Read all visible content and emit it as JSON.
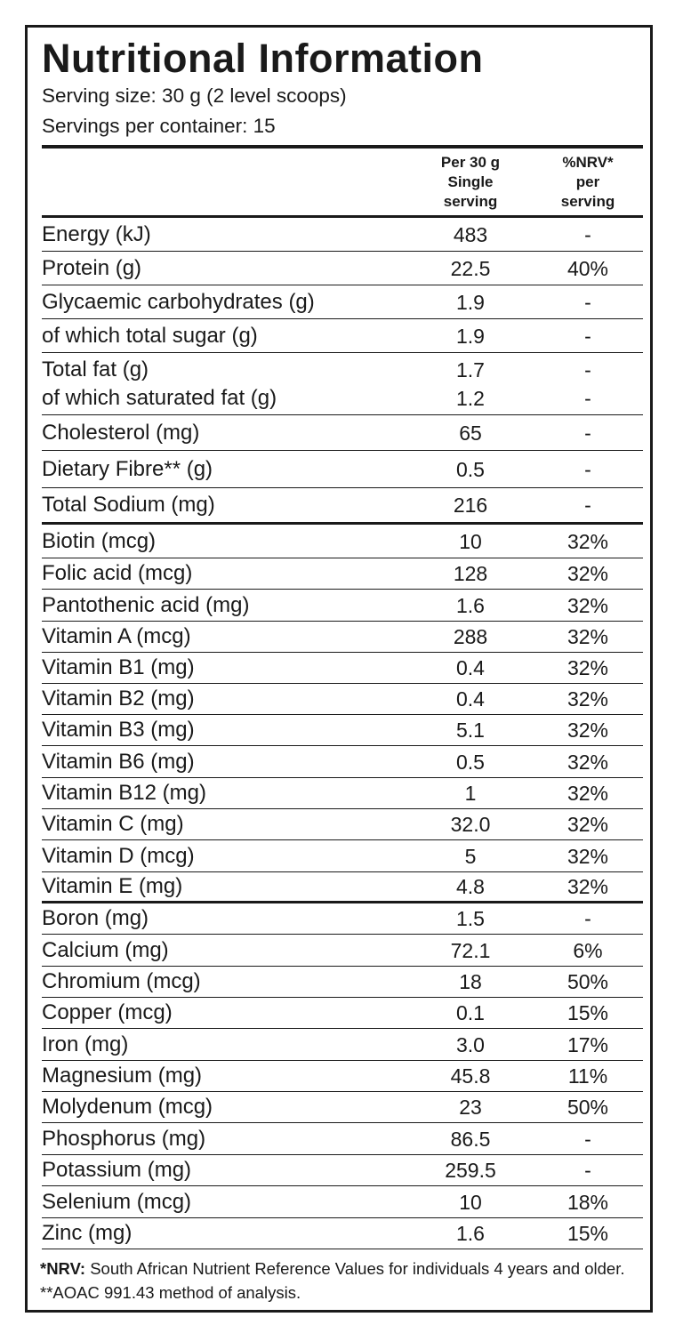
{
  "title": "Nutritional Information",
  "serving_size": "Serving size: 30 g (2 level scoops)",
  "servings_per_container": "Servings per container: 15",
  "header": {
    "per_serving_lines": [
      "Per 30 g",
      "Single",
      "serving"
    ],
    "nrv_lines": [
      "%NRV*",
      "per",
      "serving"
    ]
  },
  "rows": [
    {
      "names": [
        "Energy (kJ)"
      ],
      "amounts": [
        "483"
      ],
      "nrvs": [
        "-"
      ]
    },
    {
      "names": [
        "Protein (g)"
      ],
      "amounts": [
        "22.5"
      ],
      "nrvs": [
        "40%"
      ]
    },
    {
      "names": [
        "Glycaemic carbohydrates (g)"
      ],
      "amounts": [
        "1.9"
      ],
      "nrvs": [
        "-"
      ]
    },
    {
      "names": [
        "of which total sugar (g)"
      ],
      "amounts": [
        "1.9"
      ],
      "nrvs": [
        "-"
      ]
    },
    {
      "names": [
        "Total fat (g)",
        "of which saturated fat (g)"
      ],
      "amounts": [
        "1.7",
        "1.2"
      ],
      "nrvs": [
        "-",
        "-"
      ]
    },
    {
      "names": [
        "Cholesterol (mg)"
      ],
      "amounts": [
        "65"
      ],
      "nrvs": [
        "-"
      ]
    },
    {
      "names": [
        "Dietary Fibre** (g)"
      ],
      "amounts": [
        "0.5"
      ],
      "nrvs": [
        "-"
      ]
    },
    {
      "names": [
        "Total Sodium (mg)"
      ],
      "amounts": [
        "216"
      ],
      "nrvs": [
        "-"
      ]
    },
    {
      "names": [
        "Biotin (mcg)"
      ],
      "amounts": [
        "10"
      ],
      "nrvs": [
        "32%"
      ]
    },
    {
      "names": [
        "Folic acid (mcg)"
      ],
      "amounts": [
        "128"
      ],
      "nrvs": [
        "32%"
      ]
    },
    {
      "names": [
        "Pantothenic acid (mg)"
      ],
      "amounts": [
        "1.6"
      ],
      "nrvs": [
        "32%"
      ]
    },
    {
      "names": [
        "Vitamin A (mcg)"
      ],
      "amounts": [
        "288"
      ],
      "nrvs": [
        "32%"
      ]
    },
    {
      "names": [
        "Vitamin B1 (mg)"
      ],
      "amounts": [
        "0.4"
      ],
      "nrvs": [
        "32%"
      ]
    },
    {
      "names": [
        "Vitamin B2 (mg)"
      ],
      "amounts": [
        "0.4"
      ],
      "nrvs": [
        "32%"
      ]
    },
    {
      "names": [
        "Vitamin B3 (mg)"
      ],
      "amounts": [
        "5.1"
      ],
      "nrvs": [
        "32%"
      ]
    },
    {
      "names": [
        "Vitamin B6 (mg)"
      ],
      "amounts": [
        "0.5"
      ],
      "nrvs": [
        "32%"
      ]
    },
    {
      "names": [
        "Vitamin B12 (mg)"
      ],
      "amounts": [
        "1"
      ],
      "nrvs": [
        "32%"
      ]
    },
    {
      "names": [
        "Vitamin C (mg)"
      ],
      "amounts": [
        "32.0"
      ],
      "nrvs": [
        "32%"
      ]
    },
    {
      "names": [
        "Vitamin D (mcg)"
      ],
      "amounts": [
        "5"
      ],
      "nrvs": [
        "32%"
      ]
    },
    {
      "names": [
        "Vitamin E (mg)"
      ],
      "amounts": [
        "4.8"
      ],
      "nrvs": [
        "32%"
      ]
    },
    {
      "names": [
        "Boron (mg)"
      ],
      "amounts": [
        "1.5"
      ],
      "nrvs": [
        "-"
      ]
    },
    {
      "names": [
        "Calcium (mg)"
      ],
      "amounts": [
        "72.1"
      ],
      "nrvs": [
        "6%"
      ]
    },
    {
      "names": [
        "Chromium (mcg)"
      ],
      "amounts": [
        "18"
      ],
      "nrvs": [
        "50%"
      ]
    },
    {
      "names": [
        "Copper (mcg)"
      ],
      "amounts": [
        "0.1"
      ],
      "nrvs": [
        "15%"
      ]
    },
    {
      "names": [
        "Iron (mg)"
      ],
      "amounts": [
        "3.0"
      ],
      "nrvs": [
        "17%"
      ]
    },
    {
      "names": [
        "Magnesium (mg)"
      ],
      "amounts": [
        "45.8"
      ],
      "nrvs": [
        "11%"
      ]
    },
    {
      "names": [
        "Molydenum (mcg)"
      ],
      "amounts": [
        "23"
      ],
      "nrvs": [
        "50%"
      ]
    },
    {
      "names": [
        "Phosphorus (mg)"
      ],
      "amounts": [
        "86.5"
      ],
      "nrvs": [
        "-"
      ]
    },
    {
      "names": [
        "Potassium (mg)"
      ],
      "amounts": [
        "259.5"
      ],
      "nrvs": [
        "-"
      ]
    },
    {
      "names": [
        "Selenium (mcg)"
      ],
      "amounts": [
        "10"
      ],
      "nrvs": [
        "18%"
      ]
    },
    {
      "names": [
        "Zinc (mg)"
      ],
      "amounts": [
        "1.6"
      ],
      "nrvs": [
        "15%"
      ]
    }
  ],
  "footnote": {
    "nrv_label": "*NRV:",
    "text": " South African Nutrient Reference Values for individuals 4 years and older. **AOAC 991.43 method of analysis."
  }
}
